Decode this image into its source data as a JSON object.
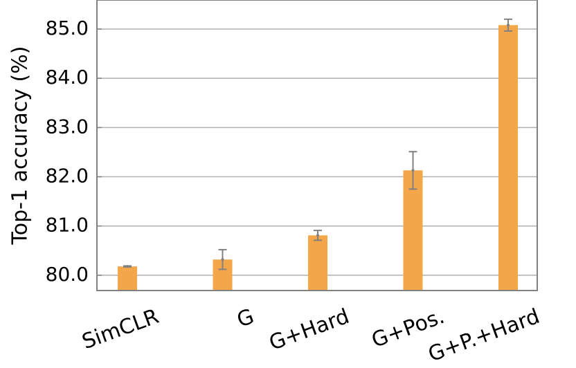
{
  "chart_data": {
    "type": "bar",
    "ylabel": "Top-1 accuracy (%)",
    "categories": [
      "SimCLR",
      "G",
      "G+Hard",
      "G+Pos.",
      "G+P.+Hard"
    ],
    "values": [
      80.18,
      80.32,
      80.81,
      82.13,
      85.08
    ],
    "errors": [
      0.01,
      0.2,
      0.1,
      0.38,
      0.12
    ],
    "color": "#f4a74a",
    "error_color": "#808080",
    "ylim": [
      79.69,
      85.59
    ],
    "yticks": [
      {
        "value": 80,
        "label": "80.0"
      },
      {
        "value": 81,
        "label": "81.0"
      },
      {
        "value": 82,
        "label": "82.0"
      },
      {
        "value": 83,
        "label": "83.0"
      },
      {
        "value": 84,
        "label": "84.0"
      },
      {
        "value": 85,
        "label": "85.0"
      }
    ],
    "grid": true
  }
}
